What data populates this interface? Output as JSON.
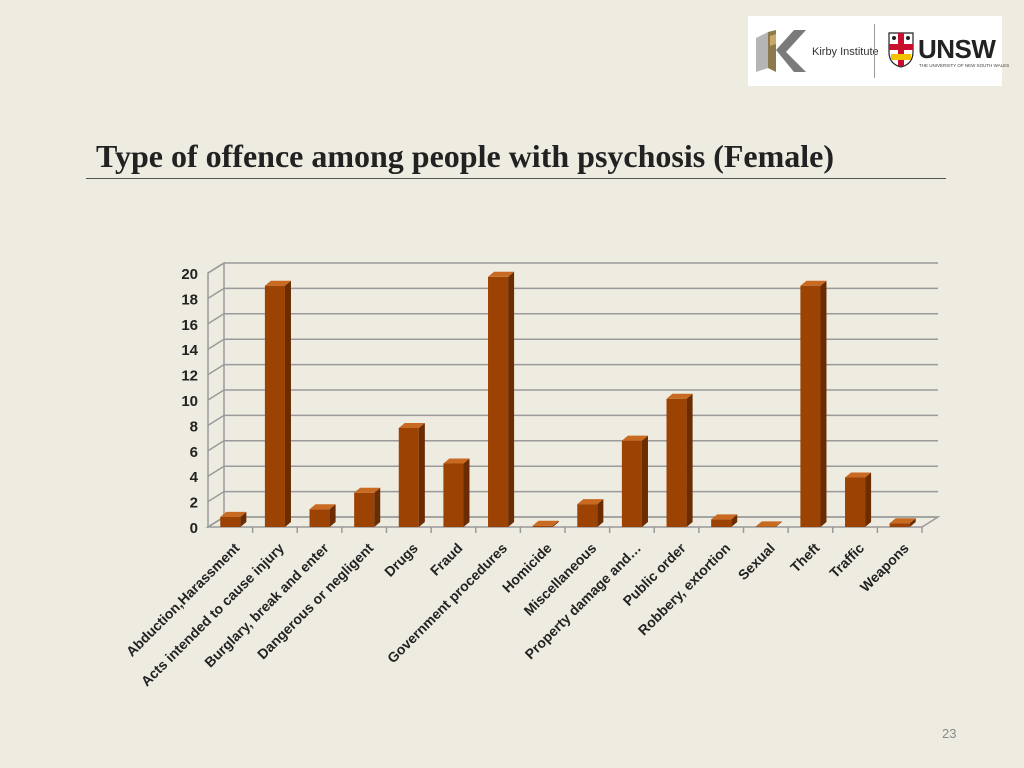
{
  "slide": {
    "title": "Type of offence among people with psychosis (Female)",
    "page_number": "23"
  },
  "logos": {
    "kirby": "Kirby Institute",
    "unsw": "UNSW",
    "unsw_tagline": "THE UNIVERSITY OF NEW SOUTH WALES"
  },
  "colors": {
    "bar_front": "#9c4304",
    "bar_side": "#6b2c02",
    "bar_top": "#c86a22",
    "grid": "#9a9a9a"
  },
  "chart_data": {
    "type": "bar",
    "title": "",
    "xlabel": "",
    "ylabel": "",
    "ylim": [
      0,
      20
    ],
    "yticks": [
      0,
      2,
      4,
      6,
      8,
      10,
      12,
      14,
      16,
      18,
      20
    ],
    "grid": true,
    "legend": "none",
    "categories": [
      "Abduction,Harassment",
      "Acts intended to cause injury",
      "Burglary, break and enter",
      "Dangerous or negligent",
      "Drugs",
      "Fraud",
      "Government procedures",
      "Homicide",
      "Miscellaneous",
      "Property damage and…",
      "Public order",
      "Robbery, extortion",
      "Sexual",
      "Theft",
      "Traffic",
      "Weapons"
    ],
    "values": [
      0.8,
      19,
      1.4,
      2.7,
      7.8,
      5.0,
      19.7,
      0.1,
      1.8,
      6.8,
      10.1,
      0.6,
      0.05,
      19,
      3.9,
      0.3
    ]
  }
}
